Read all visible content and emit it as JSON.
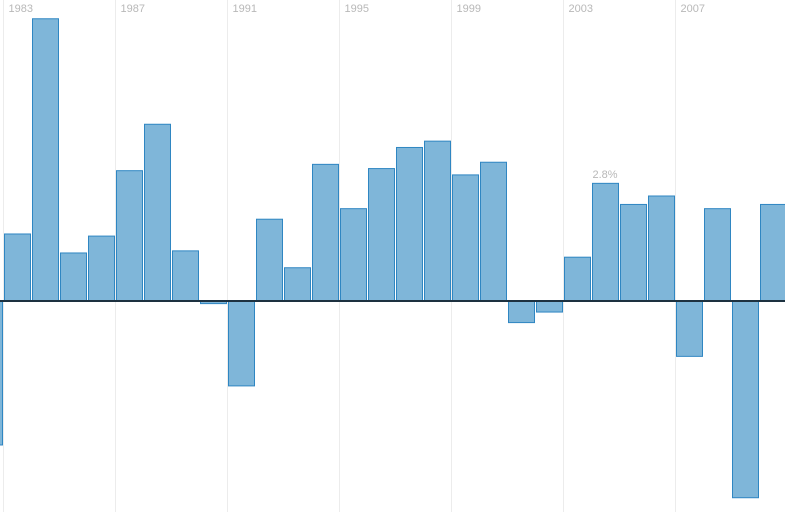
{
  "chart_data": {
    "type": "bar",
    "title": "",
    "xlabel": "",
    "ylabel": "",
    "grid": "vertical",
    "tick_labels": [
      "1983",
      "1987",
      "1991",
      "1995",
      "1999",
      "2003",
      "2007"
    ],
    "categories": [
      "1982",
      "1983",
      "1984",
      "1985",
      "1986",
      "1987",
      "1988",
      "1989",
      "1990",
      "1991",
      "1992",
      "1993",
      "1994",
      "1995",
      "1996",
      "1997",
      "1998",
      "1999",
      "2000",
      "2001",
      "2002",
      "2003",
      "2004",
      "2005",
      "2006",
      "2007",
      "2008",
      "2009",
      "2010"
    ],
    "values": [
      -3.4,
      1.6,
      6.7,
      1.15,
      1.55,
      3.1,
      4.2,
      1.2,
      -0.05,
      -2.0,
      1.95,
      0.8,
      3.25,
      2.2,
      3.15,
      3.65,
      3.8,
      3.0,
      3.3,
      -0.5,
      -0.25,
      1.05,
      2.8,
      2.3,
      2.5,
      -1.3,
      2.2,
      -4.65,
      2.3
    ],
    "data_labels": [
      {
        "category": "2004",
        "text": "2.8%"
      }
    ],
    "colors": {
      "bar_fill": "#7fb6d9",
      "bar_stroke": "#2f86c2",
      "zero_line": "#1d3140",
      "grid": "#ececec",
      "tick_text": "#b8b8b8"
    }
  }
}
